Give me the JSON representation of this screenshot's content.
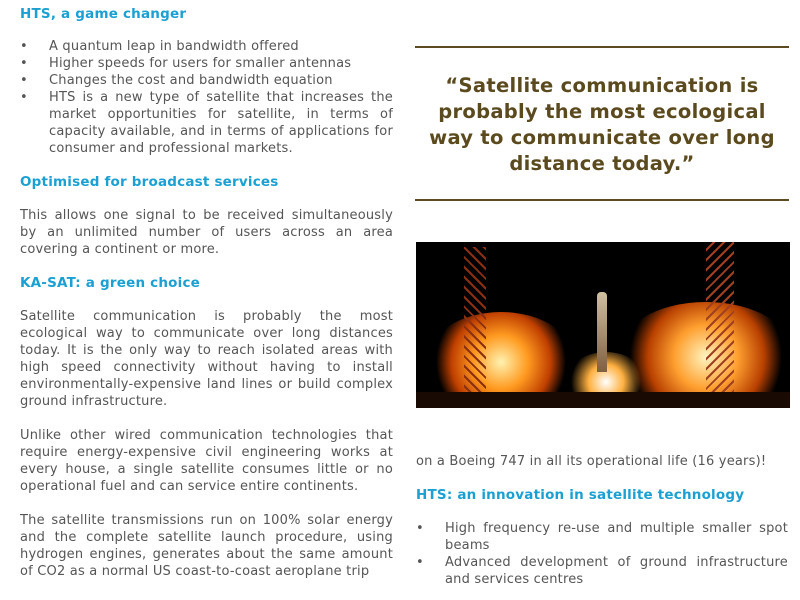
{
  "left": {
    "h1": "HTS, a game changer",
    "bullets": [
      "A quantum leap in bandwidth offered",
      "Higher speeds for users for smaller antennas",
      "Changes the cost and bandwidth equation",
      "HTS is a new type of satellite that increases the market opportunities for satellite, in terms of capacity available, and in terms of applications for consumer and professional markets."
    ],
    "h2": "Optimised for broadcast services",
    "p1": "This allows one signal to be received simultaneously by an unlimited number of users across an area covering a continent or more.",
    "h3": "KA-SAT: a green choice",
    "p2": "Satellite communication is probably the most ecological way to communicate over long distances today. It is the only way to reach isolated areas with high speed connectivity without having to install environmentally-expensive land lines or build complex ground infrastructure.",
    "p3": "Unlike other wired communication technologies that require energy-expensive civil engineering works at every house, a single satellite consumes little or no operational fuel and can service entire continents.",
    "p4": "The satellite transmissions run on 100% solar energy and the complete satellite launch procedure, using hydrogen engines, generates about the same amount of CO2 as a normal US coast-to-coast aeroplane trip"
  },
  "right": {
    "quote": "“Satellite communication is probably the most ecological way to communicate over long distance today.”",
    "photo": "rocket-launch-photo",
    "p1": "on a Boeing 747 in all its operational life (16 years)!",
    "h1": "HTS: an innovation in satellite technology",
    "bullets": [
      "High frequency re-use and multiple smaller spot beams",
      "Advanced development of ground infrastructure and services centres"
    ]
  },
  "colors": {
    "heading": "#1aa0d2",
    "quote": "#5b4a1e",
    "text": "#555555"
  }
}
